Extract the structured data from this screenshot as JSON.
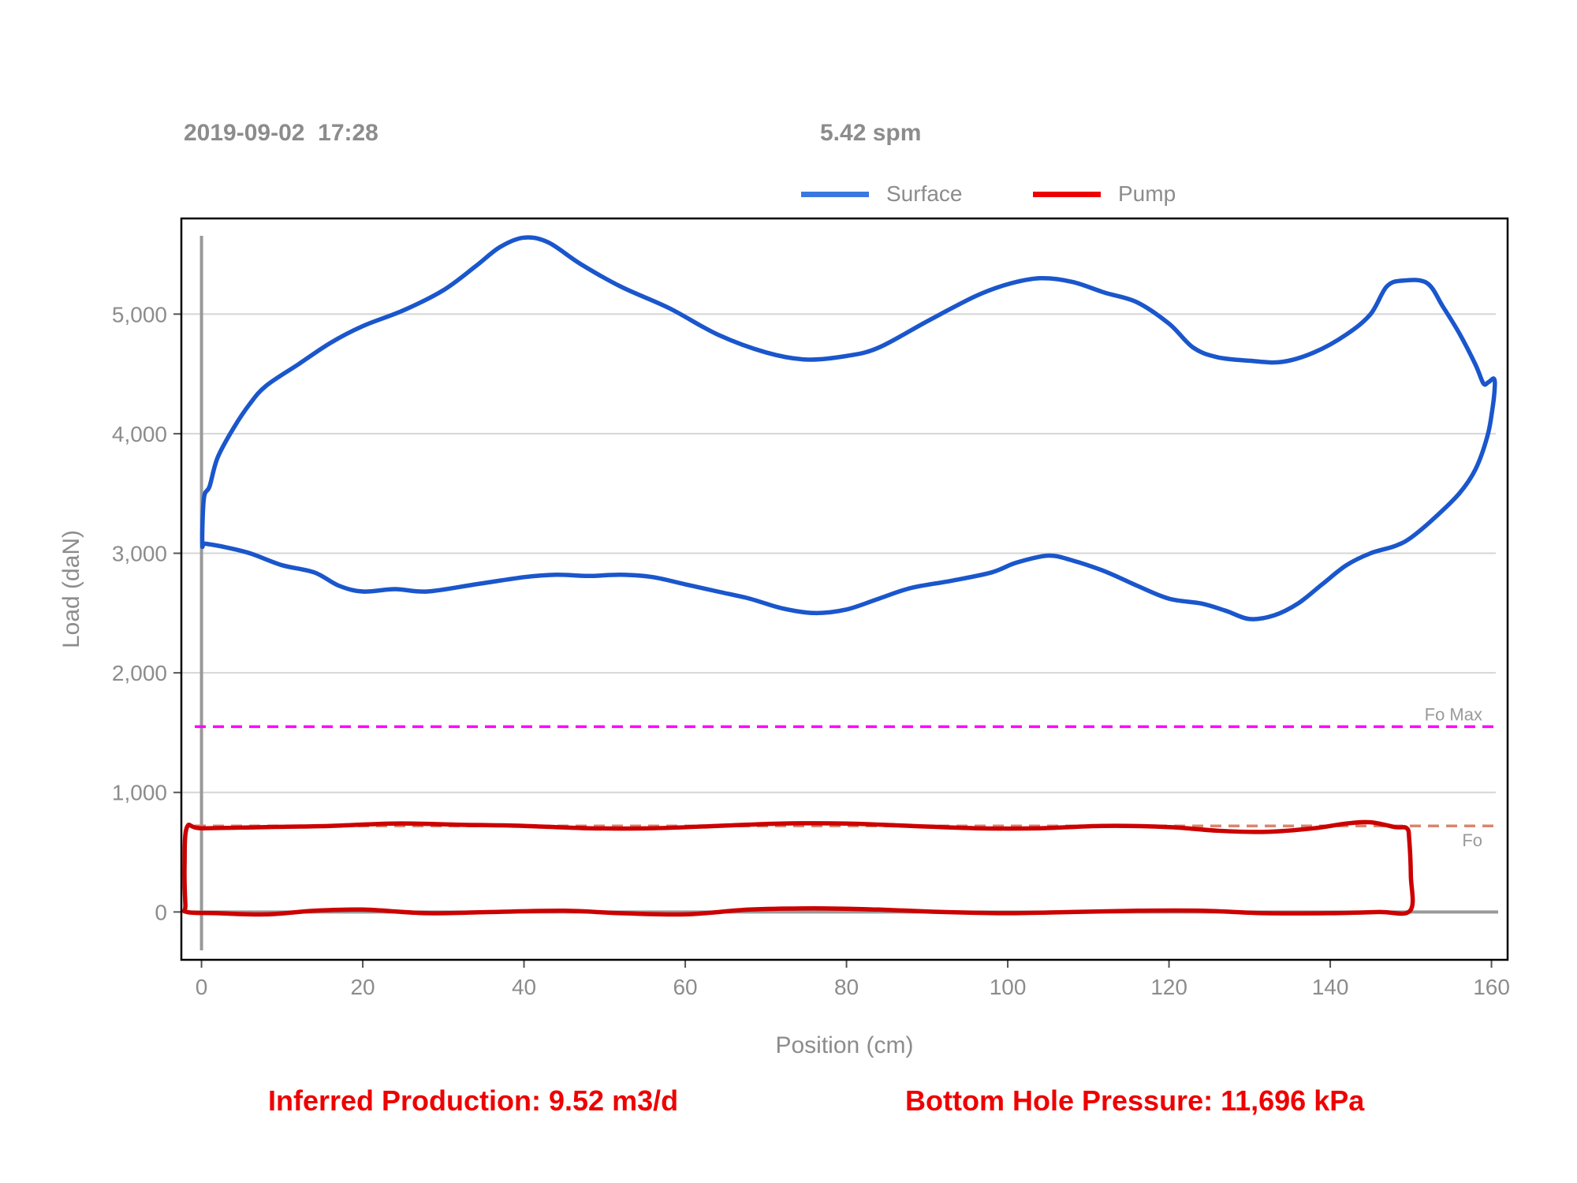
{
  "header": {
    "date": "2019-09-02",
    "time": "17:28",
    "spm": "5.42 spm"
  },
  "chart_data": {
    "type": "line",
    "title": "",
    "xlabel": "Position (cm)",
    "ylabel": "Load (daN)",
    "xlim": [
      -2.5,
      162
    ],
    "ylim": [
      -400,
      5800
    ],
    "x_ticks": [
      0,
      20,
      40,
      60,
      80,
      100,
      120,
      140,
      160
    ],
    "y_ticks": [
      0,
      1000,
      2000,
      3000,
      4000,
      5000
    ],
    "x_tick_labels": [
      "0",
      "20",
      "40",
      "60",
      "80",
      "100",
      "120",
      "140",
      "160"
    ],
    "y_tick_labels": [
      "0",
      "1,000",
      "2,000",
      "3,000",
      "4,000",
      "5,000"
    ],
    "grid": "horizontal",
    "legend": "top-center",
    "series": [
      {
        "name": "Surface",
        "color": "#1a56cc",
        "closed": true,
        "points": [
          [
            0.1,
            3080
          ],
          [
            0.3,
            3460
          ],
          [
            1,
            3560
          ],
          [
            2,
            3800
          ],
          [
            4,
            4050
          ],
          [
            6,
            4250
          ],
          [
            8,
            4400
          ],
          [
            12,
            4580
          ],
          [
            16,
            4760
          ],
          [
            20,
            4900
          ],
          [
            25,
            5030
          ],
          [
            30,
            5200
          ],
          [
            34,
            5400
          ],
          [
            37,
            5560
          ],
          [
            40,
            5640
          ],
          [
            43,
            5600
          ],
          [
            47,
            5420
          ],
          [
            52,
            5230
          ],
          [
            58,
            5050
          ],
          [
            64,
            4830
          ],
          [
            70,
            4680
          ],
          [
            75,
            4620
          ],
          [
            80,
            4650
          ],
          [
            84,
            4720
          ],
          [
            90,
            4940
          ],
          [
            96,
            5150
          ],
          [
            100,
            5250
          ],
          [
            104,
            5300
          ],
          [
            108,
            5270
          ],
          [
            112,
            5180
          ],
          [
            116,
            5100
          ],
          [
            120,
            4920
          ],
          [
            123,
            4720
          ],
          [
            126,
            4640
          ],
          [
            130,
            4610
          ],
          [
            134,
            4600
          ],
          [
            138,
            4680
          ],
          [
            142,
            4830
          ],
          [
            145,
            5000
          ],
          [
            147,
            5230
          ],
          [
            149,
            5280
          ],
          [
            152,
            5260
          ],
          [
            154,
            5060
          ],
          [
            156,
            4840
          ],
          [
            158,
            4580
          ],
          [
            159,
            4420
          ],
          [
            159.6,
            4430
          ],
          [
            160.3,
            4460
          ],
          [
            160.4,
            4380
          ],
          [
            160.1,
            4200
          ],
          [
            159.5,
            3980
          ],
          [
            158,
            3700
          ],
          [
            156,
            3500
          ],
          [
            153,
            3300
          ],
          [
            150,
            3130
          ],
          [
            148,
            3060
          ],
          [
            145,
            3000
          ],
          [
            142,
            2900
          ],
          [
            139,
            2740
          ],
          [
            136,
            2580
          ],
          [
            133,
            2480
          ],
          [
            130,
            2450
          ],
          [
            127,
            2520
          ],
          [
            124,
            2580
          ],
          [
            120,
            2620
          ],
          [
            116,
            2730
          ],
          [
            112,
            2850
          ],
          [
            108,
            2940
          ],
          [
            105,
            2980
          ],
          [
            101,
            2920
          ],
          [
            98,
            2840
          ],
          [
            93,
            2770
          ],
          [
            88,
            2710
          ],
          [
            84,
            2620
          ],
          [
            80,
            2530
          ],
          [
            76,
            2500
          ],
          [
            72,
            2540
          ],
          [
            68,
            2620
          ],
          [
            64,
            2680
          ],
          [
            60,
            2740
          ],
          [
            56,
            2800
          ],
          [
            52,
            2820
          ],
          [
            48,
            2810
          ],
          [
            44,
            2820
          ],
          [
            40,
            2800
          ],
          [
            34,
            2740
          ],
          [
            28,
            2680
          ],
          [
            24,
            2700
          ],
          [
            20,
            2680
          ],
          [
            17,
            2730
          ],
          [
            14,
            2840
          ],
          [
            10,
            2900
          ],
          [
            6,
            3000
          ],
          [
            3,
            3050
          ],
          [
            0.5,
            3080
          ]
        ]
      },
      {
        "name": "Pump",
        "color": "#cc0000",
        "closed": true,
        "points": [
          [
            -1.8,
            0
          ],
          [
            2,
            -10
          ],
          [
            8,
            -20
          ],
          [
            14,
            10
          ],
          [
            20,
            20
          ],
          [
            28,
            -10
          ],
          [
            36,
            0
          ],
          [
            45,
            10
          ],
          [
            52,
            -10
          ],
          [
            60,
            -20
          ],
          [
            68,
            20
          ],
          [
            76,
            30
          ],
          [
            84,
            20
          ],
          [
            92,
            0
          ],
          [
            100,
            -10
          ],
          [
            108,
            0
          ],
          [
            116,
            10
          ],
          [
            124,
            10
          ],
          [
            132,
            -10
          ],
          [
            140,
            -10
          ],
          [
            146,
            0
          ],
          [
            149.9,
            10
          ],
          [
            150,
            300
          ],
          [
            149.8,
            600
          ],
          [
            149.5,
            700
          ],
          [
            148,
            710
          ],
          [
            145,
            750
          ],
          [
            142,
            740
          ],
          [
            138,
            700
          ],
          [
            132,
            670
          ],
          [
            126,
            680
          ],
          [
            120,
            710
          ],
          [
            112,
            720
          ],
          [
            104,
            700
          ],
          [
            96,
            700
          ],
          [
            88,
            720
          ],
          [
            80,
            740
          ],
          [
            72,
            740
          ],
          [
            64,
            720
          ],
          [
            56,
            700
          ],
          [
            48,
            700
          ],
          [
            40,
            720
          ],
          [
            32,
            730
          ],
          [
            24,
            740
          ],
          [
            16,
            720
          ],
          [
            8,
            710
          ],
          [
            0,
            700
          ],
          [
            -1.8,
            710
          ],
          [
            -2.1,
            400
          ],
          [
            -2.0,
            60
          ]
        ]
      }
    ],
    "reference_lines": [
      {
        "label": "Fo Max",
        "y": 1550,
        "color": "#ff00ff"
      },
      {
        "label": "Fo",
        "y": 720,
        "color": "#d9866e"
      }
    ]
  },
  "footer": {
    "production": "Inferred Production: 9.52 m3/d",
    "bottom_hole_pressure": "Bottom Hole Pressure: 11,696 kPa"
  }
}
